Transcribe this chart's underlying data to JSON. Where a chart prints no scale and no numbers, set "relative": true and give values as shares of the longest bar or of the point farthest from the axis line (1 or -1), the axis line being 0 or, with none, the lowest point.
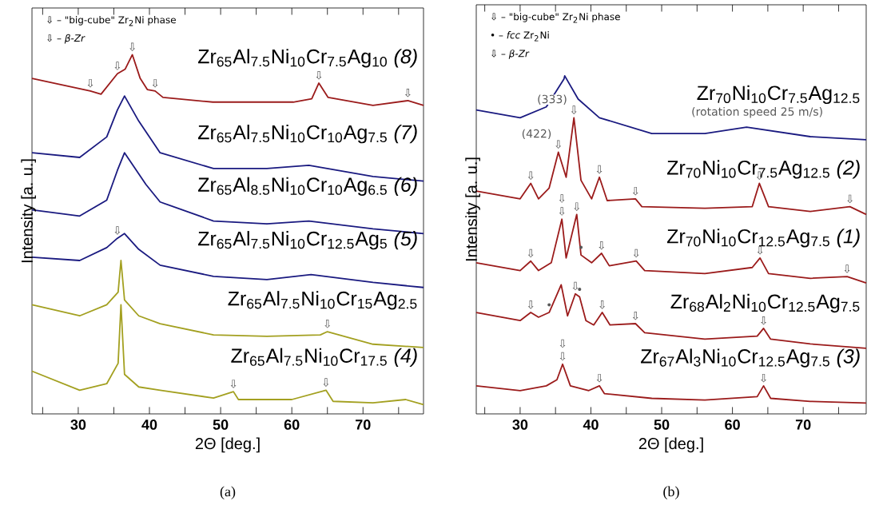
{
  "chart_data": [
    {
      "type": "line",
      "relative": true,
      "title": "(a)",
      "xlabel": "2Θ  [deg.]",
      "ylabel": "Intensity [a. u.]",
      "xlim": [
        23.5,
        78.5
      ],
      "xticks": [
        {
          "value": 25,
          "label": null
        },
        30,
        {
          "value": 35,
          "label": null
        },
        40,
        {
          "value": 45,
          "label": null
        },
        50,
        {
          "value": 55,
          "label": null
        },
        60,
        {
          "value": 65,
          "label": null
        },
        70,
        {
          "value": 75,
          "label": null
        }
      ],
      "series": [
        {
          "name": "Zr$_{65}$Al$_{7.5}$Ni$_{10}$Cr$_{7.5}$Ag$_{10}$ *(8)*",
          "color": "#9b1b1b",
          "x": [
            23.5,
            31.7,
            33.2,
            35.5,
            36.6,
            37.6,
            38.7,
            39.7,
            40.8,
            41.9,
            48.9,
            60.2,
            62.8,
            63.8,
            65.1,
            71.4,
            76.3,
            78.5
          ],
          "values": [
            0.934,
            0.899,
            0.89,
            0.947,
            0.96,
            1.0,
            0.934,
            0.903,
            0.899,
            0.881,
            0.868,
            0.868,
            0.877,
            0.921,
            0.881,
            0.859,
            0.872,
            0.859
          ]
        },
        {
          "name": "Zr$_{65}$Al$_{7.5}$Ni$_{10}$Cr$_{10}$Ag$_{7.5}$ *(7)*",
          "color": "#1a1a80",
          "x": [
            23.5,
            30.2,
            34.0,
            35.5,
            36.5,
            38.5,
            41.5,
            49,
            56.5,
            62.4,
            71.4,
            78.5
          ],
          "values": [
            0.727,
            0.714,
            0.771,
            0.846,
            0.885,
            0.815,
            0.727,
            0.683,
            0.683,
            0.692,
            0.661,
            0.648
          ]
        },
        {
          "name": "Zr$_{65}$Al$_{8.5}$Ni$_{10}$Cr$_{10}$Ag$_{6.5}$ *(6)*",
          "color": "#1a1a80",
          "x": [
            23.5,
            30.2,
            34.0,
            35.5,
            36.5,
            39.5,
            41.5,
            49,
            56.5,
            62.4,
            71.4,
            78.5
          ],
          "values": [
            0.568,
            0.551,
            0.595,
            0.678,
            0.727,
            0.639,
            0.59,
            0.537,
            0.529,
            0.537,
            0.515,
            0.502
          ]
        },
        {
          "name": "Zr$_{65}$Al$_{7.5}$Ni$_{10}$Cr$_{12.5}$Ag$_{5}$ *(5)*",
          "color": "#1a1a80",
          "x": [
            23.5,
            30.2,
            34.0,
            35.5,
            36.5,
            38.5,
            41.5,
            49,
            56.5,
            62.7,
            71.4,
            78.5
          ],
          "values": [
            0.436,
            0.427,
            0.463,
            0.489,
            0.502,
            0.458,
            0.414,
            0.383,
            0.374,
            0.388,
            0.366,
            0.352
          ]
        },
        {
          "name": "Zr$_{65}$Al$_{7.5}$Ni$_{10}$Cr$_{15}$Ag$_{2.5}$",
          "color": "#a3a020",
          "x": [
            23.5,
            30.2,
            34.0,
            35.6,
            36.0,
            36.5,
            38.5,
            41.5,
            49,
            56.5,
            64.0,
            65.0,
            71.4,
            78.5
          ],
          "values": [
            0.304,
            0.273,
            0.304,
            0.339,
            0.427,
            0.317,
            0.273,
            0.251,
            0.22,
            0.216,
            0.22,
            0.229,
            0.194,
            0.185
          ]
        },
        {
          "name": "Zr$_{65}$Al$_{7.5}$Ni$_{10}$Cr$_{17.5}$ *(4)*",
          "color": "#a3a020",
          "x": [
            23.5,
            30.2,
            34.0,
            35.6,
            36.0,
            36.5,
            38.5,
            41.5,
            49,
            51.8,
            52.5,
            60,
            64.8,
            65.8,
            71.4,
            76,
            78.5
          ],
          "values": [
            0.119,
            0.066,
            0.084,
            0.141,
            0.304,
            0.11,
            0.075,
            0.066,
            0.044,
            0.062,
            0.04,
            0.04,
            0.066,
            0.035,
            0.031,
            0.04,
            0.026
          ]
        }
      ],
      "annotations": [
        "⇩ – \"big-cube\" Zr$_{2}$Ni phase",
        "⇩ – *β-Zr*",
        {
          "text": "⇩",
          "x": 31.7,
          "y": 0.899
        },
        {
          "text": "⇩",
          "x": 35.5,
          "y": 0.947
        },
        {
          "text": "⇩",
          "x": 37.6,
          "y": 1.0
        },
        {
          "text": "⇩",
          "x": 40.8,
          "y": 0.899
        },
        {
          "text": "⇩",
          "x": 63.8,
          "y": 0.921
        },
        {
          "text": "⇩",
          "x": 76.3,
          "y": 0.872
        },
        {
          "text": "⇩",
          "x": 35.5,
          "y": 0.489
        },
        {
          "text": "⇩",
          "x": 65.0,
          "y": 0.229
        },
        {
          "text": "⇩",
          "x": 51.8,
          "y": 0.062
        },
        {
          "text": "⇩",
          "x": 64.8,
          "y": 0.066
        }
      ]
    },
    {
      "type": "line",
      "relative": true,
      "title": "(b)",
      "xlabel": "2Θ  [deg.]",
      "ylabel": "Intensity [a. u.]",
      "xlim": [
        23.8,
        78.9
      ],
      "xticks": [
        {
          "value": 25,
          "label": null
        },
        30,
        {
          "value": 35,
          "label": null
        },
        40,
        {
          "value": 45,
          "label": null
        },
        50,
        {
          "value": 55,
          "label": null
        },
        60,
        {
          "value": 65,
          "label": null
        },
        70,
        {
          "value": 75,
          "label": null
        }
      ],
      "series": [
        {
          "name": "Zr$_{70}$Ni$_{10}$Cr$_{7.5}$Ag$_{12.5}$",
          "color": "#1a1a80",
          "x": [
            23.8,
            30.0,
            33.7,
            36.2,
            36.3,
            38.2,
            41.2,
            48.6,
            56.1,
            62.0,
            71.0,
            78.9
          ],
          "values": [
            0.899,
            0.876,
            0.908,
            0.991,
            1.0,
            0.931,
            0.876,
            0.829,
            0.829,
            0.848,
            0.82,
            0.811
          ]
        },
        {
          "name": "Zr$_{70}$Ni$_{10}$Cr$_{7.5}$Ag$_{12.5}$ *(2)*",
          "color": "#9b1b1b",
          "x": [
            23.8,
            30.0,
            31.5,
            32.6,
            34.1,
            35.4,
            36.5,
            37.6,
            38.6,
            40.1,
            41.2,
            42.3,
            46.3,
            47.2,
            56.1,
            62.8,
            63.8,
            65.1,
            71.0,
            76.6,
            78.9
          ],
          "values": [
            0.659,
            0.636,
            0.682,
            0.636,
            0.668,
            0.774,
            0.7,
            0.876,
            0.691,
            0.636,
            0.7,
            0.631,
            0.636,
            0.613,
            0.608,
            0.613,
            0.682,
            0.613,
            0.599,
            0.613,
            0.59
          ]
        },
        {
          "name": "Zr$_{70}$Ni$_{10}$Cr$_{12.5}$Ag$_{7.5}$ *(1)*",
          "color": "#9b1b1b",
          "x": [
            23.8,
            30.0,
            31.5,
            32.6,
            34.4,
            35.9,
            36.5,
            38.0,
            38.6,
            40.1,
            41.5,
            42.6,
            46.4,
            47.6,
            56.1,
            62.8,
            63.9,
            65.1,
            71.0,
            76.2,
            78.9
          ],
          "values": [
            0.447,
            0.424,
            0.452,
            0.424,
            0.447,
            0.576,
            0.461,
            0.59,
            0.47,
            0.447,
            0.475,
            0.438,
            0.452,
            0.424,
            0.415,
            0.433,
            0.461,
            0.415,
            0.401,
            0.406,
            0.387
          ]
        },
        {
          "name": "Zr$_{68}$Al$_{2}$Ni$_{10}$Cr$_{12.5}$Ag$_{7.5}$",
          "color": "#9b1b1b",
          "x": [
            23.8,
            30.0,
            31.5,
            32.6,
            34.1,
            35.8,
            36.7,
            37.8,
            38.4,
            39.3,
            40.4,
            41.6,
            42.7,
            46.3,
            47.6,
            56.1,
            63.5,
            64.4,
            65.4,
            71.0,
            78.9
          ],
          "values": [
            0.3,
            0.276,
            0.3,
            0.286,
            0.3,
            0.382,
            0.29,
            0.355,
            0.346,
            0.276,
            0.263,
            0.3,
            0.263,
            0.267,
            0.24,
            0.221,
            0.23,
            0.253,
            0.221,
            0.207,
            0.194
          ]
        },
        {
          "name": "Zr$_{67}$Al$_{3}$Ni$_{10}$Cr$_{12.5}$Ag$_{7.5}$ *(3)*",
          "color": "#9b1b1b",
          "x": [
            23.8,
            30.0,
            33.7,
            35.2,
            36.0,
            37.1,
            39.7,
            41.2,
            41.9,
            48.6,
            56.1,
            63.5,
            64.4,
            65.4,
            71.0,
            78.9
          ],
          "values": [
            0.083,
            0.069,
            0.083,
            0.101,
            0.147,
            0.083,
            0.069,
            0.083,
            0.06,
            0.046,
            0.041,
            0.051,
            0.083,
            0.046,
            0.037,
            0.032
          ]
        }
      ],
      "annotations": [
        "⇩ – \"big-cube\" Zr$_{2}$Ni phase",
        "• – *fcc* Zr$_{2}$Ni",
        "⇩ – *β-Zr*",
        {
          "text": "(rotation speed 25 m/s)",
          "x": 63.5,
          "y": 0.865
        },
        {
          "text": "⇩",
          "x": 31.5,
          "y": 0.682
        },
        {
          "text": "⇩",
          "x": 35.4,
          "y": 0.774
        },
        {
          "text": "(422)",
          "x": 35.4,
          "y": 0.774
        },
        {
          "text": "⇩",
          "x": 37.6,
          "y": 0.876
        },
        {
          "text": "(333)",
          "x": 37.6,
          "y": 0.876
        },
        {
          "text": "⇩",
          "x": 41.2,
          "y": 0.7
        },
        {
          "text": "⇩",
          "x": 46.3,
          "y": 0.636
        },
        {
          "text": "⇩",
          "x": 63.8,
          "y": 0.682
        },
        {
          "text": "⇩",
          "x": 76.6,
          "y": 0.613
        },
        {
          "text": "⇩",
          "x": 35.9,
          "y": 0.576
        },
        {
          "text": "⇩",
          "x": 35.9,
          "y": 0.576
        },
        {
          "text": "⇩",
          "x": 38.0,
          "y": 0.59
        },
        {
          "text": "•",
          "x": 38.6,
          "y": 0.47
        },
        {
          "text": "⇩",
          "x": 31.5,
          "y": 0.452
        },
        {
          "text": "⇩",
          "x": 41.5,
          "y": 0.475
        },
        {
          "text": "⇩",
          "x": 46.4,
          "y": 0.452
        },
        {
          "text": "⇩",
          "x": 63.9,
          "y": 0.461
        },
        {
          "text": "⇩",
          "x": 76.2,
          "y": 0.406
        },
        {
          "text": "⇩",
          "x": 31.5,
          "y": 0.3
        },
        {
          "text": "•",
          "x": 34.1,
          "y": 0.3
        },
        {
          "text": "⇩",
          "x": 37.8,
          "y": 0.355
        },
        {
          "text": "•",
          "x": 38.4,
          "y": 0.346
        },
        {
          "text": "⇩",
          "x": 41.6,
          "y": 0.3
        },
        {
          "text": "⇩",
          "x": 46.3,
          "y": 0.267
        },
        {
          "text": "⇩",
          "x": 64.4,
          "y": 0.253
        },
        {
          "text": "⇩",
          "x": 36.0,
          "y": 0.147
        },
        {
          "text": "⇩",
          "x": 36.0,
          "y": 0.147
        },
        {
          "text": "⇩",
          "x": 41.2,
          "y": 0.083
        },
        {
          "text": "⇩",
          "x": 64.4,
          "y": 0.083
        }
      ]
    }
  ]
}
